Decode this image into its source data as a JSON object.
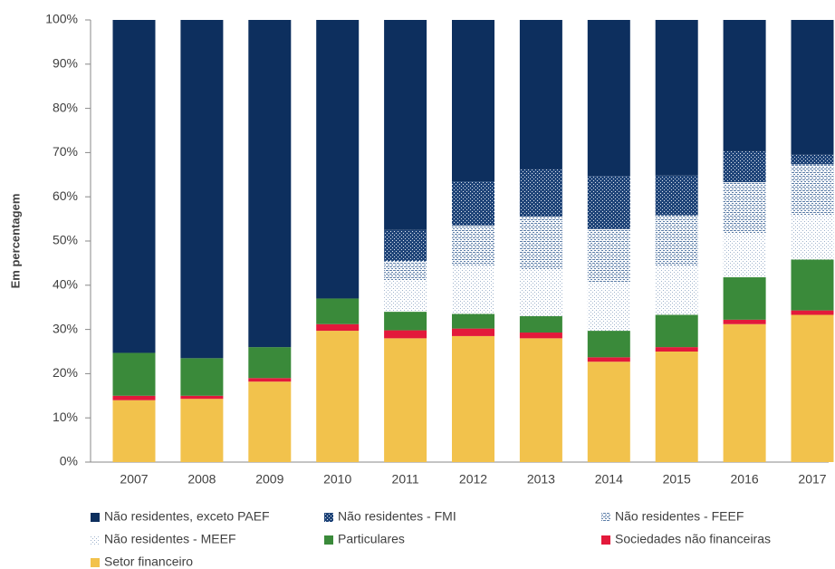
{
  "chart_data": {
    "type": "stacked_bar",
    "ylabel": "Em percentagem",
    "categories": [
      "2007",
      "2008",
      "2009",
      "2010",
      "2011",
      "2012",
      "2013",
      "2014",
      "2015",
      "2016",
      "2017"
    ],
    "series": [
      {
        "name": "Não residentes, exceto PAEF",
        "color": "#0d2f5e",
        "values": [
          75.3,
          76.5,
          74,
          63,
          47.5,
          36.5,
          33.8,
          35.3,
          35.2,
          29.7,
          30.5
        ]
      },
      {
        "name": "Não residentes - FMI",
        "color": "#1f4478",
        "pattern": "dense",
        "values": [
          0,
          0,
          0,
          0,
          7,
          10,
          10.7,
          12,
          9,
          7,
          2.2
        ]
      },
      {
        "name": "Não residentes - FEEF",
        "color": "#5d7ea8",
        "pattern": "medium",
        "values": [
          0,
          0,
          0,
          0,
          4.5,
          9,
          12,
          12,
          11.5,
          11.5,
          11.5
        ]
      },
      {
        "name": "Não residentes - MEEF",
        "color": "#9fb3cc",
        "pattern": "light",
        "values": [
          0,
          0,
          0,
          0,
          7,
          11,
          10.5,
          11,
          11,
          10,
          10
        ]
      },
      {
        "name": "Particulares",
        "color": "#3a8a3a",
        "values": [
          9.7,
          8.5,
          7,
          5.8,
          4.2,
          3.3,
          3.7,
          6,
          7.3,
          9.6,
          11.5
        ]
      },
      {
        "name": "Sociedades não financeiras",
        "color": "#e3193b",
        "values": [
          1,
          0.7,
          0.8,
          1.5,
          1.8,
          1.7,
          1.3,
          1,
          1,
          1,
          1
        ]
      },
      {
        "name": "Setor financeiro",
        "color": "#f2c24c",
        "values": [
          14,
          14.3,
          18.2,
          29.7,
          28,
          28.5,
          28,
          22.7,
          25,
          31.2,
          33.3
        ]
      }
    ],
    "ylim": [
      0,
      100
    ],
    "yticks": [
      {
        "value": 0,
        "label": "0%"
      },
      {
        "value": 10,
        "label": "10%"
      },
      {
        "value": 20,
        "label": "20%"
      },
      {
        "value": 30,
        "label": "30%"
      },
      {
        "value": 40,
        "label": "40%"
      },
      {
        "value": 50,
        "label": "50%"
      },
      {
        "value": 60,
        "label": "60%"
      },
      {
        "value": 70,
        "label": "70%"
      },
      {
        "value": 80,
        "label": "80%"
      },
      {
        "value": 90,
        "label": "90%"
      },
      {
        "value": 100,
        "label": "100%"
      }
    ],
    "grid": false,
    "legend": "bottom"
  }
}
